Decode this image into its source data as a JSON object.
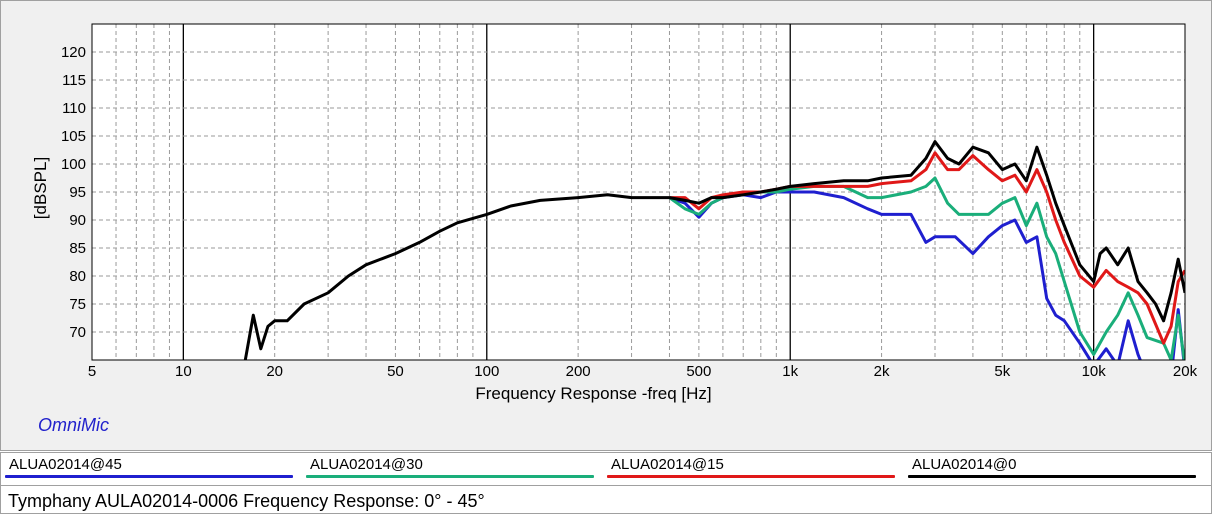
{
  "brand": "OmniMic",
  "caption": "Tymphany AULA02014-0006 Frequency Response: 0° - 45°",
  "chart_data": {
    "type": "line",
    "xlabel": "Frequency Response -freq [Hz]",
    "ylabel": "[dBSPL]",
    "xscale": "log",
    "xlim": [
      5,
      20000
    ],
    "ylim": [
      65,
      125
    ],
    "x_ticks": [
      {
        "value": 5,
        "label": "5"
      },
      {
        "value": 10,
        "label": "10"
      },
      {
        "value": 20,
        "label": "20"
      },
      {
        "value": 50,
        "label": "50"
      },
      {
        "value": 100,
        "label": "100"
      },
      {
        "value": 200,
        "label": "200"
      },
      {
        "value": 500,
        "label": "500"
      },
      {
        "value": 1000,
        "label": "1k"
      },
      {
        "value": 2000,
        "label": "2k"
      },
      {
        "value": 5000,
        "label": "5k"
      },
      {
        "value": 10000,
        "label": "10k"
      },
      {
        "value": 20000,
        "label": "20k"
      }
    ],
    "y_ticks": [
      70,
      75,
      80,
      85,
      90,
      95,
      100,
      105,
      110,
      115,
      120
    ],
    "grid": true,
    "legend_position": "bottom",
    "series": [
      {
        "name": "ALUA02014@45",
        "color": "#1f1fcf",
        "points": [
          [
            400,
            94
          ],
          [
            450,
            93
          ],
          [
            500,
            90.5
          ],
          [
            550,
            93
          ],
          [
            600,
            94
          ],
          [
            700,
            94.5
          ],
          [
            800,
            94
          ],
          [
            900,
            95
          ],
          [
            1000,
            95
          ],
          [
            1200,
            95
          ],
          [
            1500,
            94
          ],
          [
            1800,
            92
          ],
          [
            2000,
            91
          ],
          [
            2500,
            91
          ],
          [
            2800,
            86
          ],
          [
            3000,
            87
          ],
          [
            3500,
            87
          ],
          [
            4000,
            84
          ],
          [
            4500,
            87
          ],
          [
            5000,
            89
          ],
          [
            5500,
            90
          ],
          [
            6000,
            86
          ],
          [
            6500,
            87
          ],
          [
            7000,
            76
          ],
          [
            7500,
            73
          ],
          [
            8000,
            72
          ],
          [
            9000,
            68
          ],
          [
            10000,
            64
          ],
          [
            11000,
            67
          ],
          [
            12000,
            64
          ],
          [
            13000,
            72
          ],
          [
            14000,
            66
          ],
          [
            15000,
            62
          ],
          [
            17000,
            64
          ],
          [
            18000,
            62
          ],
          [
            19000,
            74
          ],
          [
            20000,
            63
          ]
        ]
      },
      {
        "name": "ALUA02014@30",
        "color": "#1aae7a",
        "points": [
          [
            400,
            94
          ],
          [
            450,
            92
          ],
          [
            500,
            91
          ],
          [
            550,
            93
          ],
          [
            600,
            94
          ],
          [
            700,
            95
          ],
          [
            800,
            95
          ],
          [
            900,
            95
          ],
          [
            1000,
            95.5
          ],
          [
            1200,
            96
          ],
          [
            1500,
            96
          ],
          [
            1800,
            94
          ],
          [
            2000,
            94
          ],
          [
            2500,
            95
          ],
          [
            2800,
            96
          ],
          [
            3000,
            97.5
          ],
          [
            3300,
            93
          ],
          [
            3600,
            91
          ],
          [
            4000,
            91
          ],
          [
            4500,
            91
          ],
          [
            5000,
            93
          ],
          [
            5500,
            94
          ],
          [
            6000,
            89
          ],
          [
            6500,
            93
          ],
          [
            7000,
            87
          ],
          [
            7500,
            84
          ],
          [
            8000,
            79
          ],
          [
            9000,
            70
          ],
          [
            10000,
            66
          ],
          [
            11000,
            70
          ],
          [
            12000,
            73
          ],
          [
            13000,
            77
          ],
          [
            14000,
            73
          ],
          [
            15000,
            69
          ],
          [
            17000,
            68
          ],
          [
            18000,
            65
          ],
          [
            19000,
            73
          ],
          [
            20000,
            64
          ]
        ]
      },
      {
        "name": "ALUA02014@15",
        "color": "#e01818",
        "points": [
          [
            400,
            94
          ],
          [
            450,
            94
          ],
          [
            500,
            92
          ],
          [
            550,
            94
          ],
          [
            600,
            94.5
          ],
          [
            700,
            95
          ],
          [
            800,
            95
          ],
          [
            900,
            95.5
          ],
          [
            1000,
            96
          ],
          [
            1200,
            96
          ],
          [
            1500,
            96
          ],
          [
            1800,
            96
          ],
          [
            2000,
            96.5
          ],
          [
            2500,
            97
          ],
          [
            2800,
            99
          ],
          [
            3000,
            102
          ],
          [
            3300,
            99
          ],
          [
            3600,
            99
          ],
          [
            4000,
            101.5
          ],
          [
            4500,
            99
          ],
          [
            5000,
            97
          ],
          [
            5500,
            98
          ],
          [
            6000,
            95
          ],
          [
            6500,
            99
          ],
          [
            7000,
            95
          ],
          [
            7500,
            90
          ],
          [
            8000,
            86
          ],
          [
            9000,
            80
          ],
          [
            10000,
            78
          ],
          [
            11000,
            81
          ],
          [
            12000,
            79
          ],
          [
            13000,
            78
          ],
          [
            14000,
            77
          ],
          [
            15000,
            75
          ],
          [
            17000,
            68
          ],
          [
            18000,
            71
          ],
          [
            19000,
            79
          ],
          [
            20000,
            81
          ]
        ]
      },
      {
        "name": "ALUA02014@0",
        "color": "#000000",
        "points": [
          [
            16,
            65
          ],
          [
            17,
            73
          ],
          [
            18,
            67
          ],
          [
            19,
            71
          ],
          [
            20,
            72
          ],
          [
            22,
            72
          ],
          [
            25,
            75
          ],
          [
            30,
            77
          ],
          [
            35,
            80
          ],
          [
            40,
            82
          ],
          [
            50,
            84
          ],
          [
            60,
            86
          ],
          [
            70,
            88
          ],
          [
            80,
            89.5
          ],
          [
            100,
            91
          ],
          [
            120,
            92.5
          ],
          [
            150,
            93.5
          ],
          [
            200,
            94
          ],
          [
            250,
            94.5
          ],
          [
            300,
            94
          ],
          [
            400,
            94
          ],
          [
            450,
            93.5
          ],
          [
            500,
            93
          ],
          [
            550,
            94
          ],
          [
            600,
            94
          ],
          [
            700,
            94.5
          ],
          [
            800,
            95
          ],
          [
            900,
            95.5
          ],
          [
            1000,
            96
          ],
          [
            1200,
            96.5
          ],
          [
            1500,
            97
          ],
          [
            1800,
            97
          ],
          [
            2000,
            97.5
          ],
          [
            2500,
            98
          ],
          [
            2800,
            101
          ],
          [
            3000,
            104
          ],
          [
            3300,
            101
          ],
          [
            3600,
            100
          ],
          [
            4000,
            103
          ],
          [
            4500,
            102
          ],
          [
            5000,
            99
          ],
          [
            5500,
            100
          ],
          [
            6000,
            97
          ],
          [
            6500,
            103
          ],
          [
            7000,
            98
          ],
          [
            7500,
            93
          ],
          [
            8000,
            89
          ],
          [
            9000,
            82
          ],
          [
            10000,
            79
          ],
          [
            10500,
            84
          ],
          [
            11000,
            85
          ],
          [
            12000,
            82
          ],
          [
            13000,
            85
          ],
          [
            14000,
            79
          ],
          [
            15000,
            77
          ],
          [
            16000,
            75
          ],
          [
            17000,
            72
          ],
          [
            18000,
            77
          ],
          [
            19000,
            83
          ],
          [
            20000,
            77
          ]
        ]
      }
    ]
  }
}
